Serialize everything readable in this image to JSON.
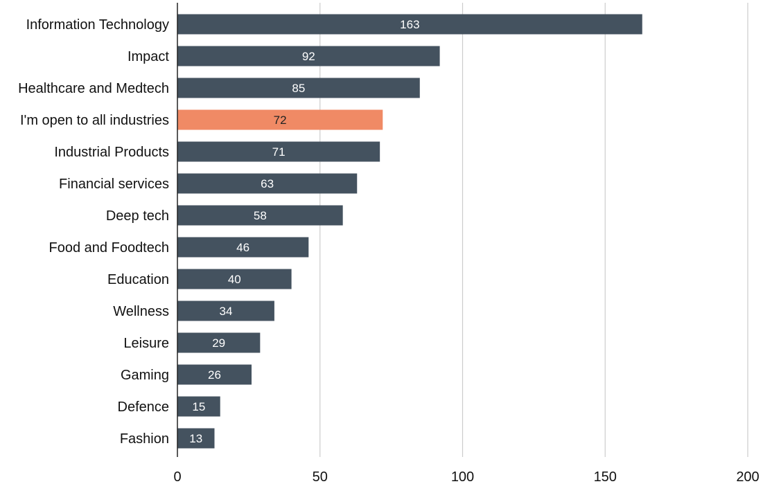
{
  "chart_data": {
    "type": "bar",
    "orientation": "horizontal",
    "title": "",
    "xlabel": "",
    "ylabel": "",
    "categories": [
      "Information Technology",
      "Impact",
      "Healthcare and Medtech",
      "I'm open to all industries",
      "Industrial Products",
      "Financial services",
      "Deep tech",
      "Food and Foodtech",
      "Education",
      "Wellness",
      "Leisure",
      "Gaming",
      "Defence",
      "Fashion"
    ],
    "values": [
      163,
      92,
      85,
      72,
      71,
      63,
      58,
      46,
      40,
      34,
      29,
      26,
      15,
      13
    ],
    "highlight_index": 3,
    "xlim": [
      0,
      200
    ],
    "xticks": [
      0,
      50,
      100,
      150,
      200
    ],
    "grid": "vertical",
    "legend": "none",
    "colors": {
      "bar": "#44525f",
      "highlight": "#f08a65",
      "grid": "#cccccc",
      "axis": "#222222",
      "bar_label": "#ffffff",
      "highlight_label": "#222222"
    }
  }
}
